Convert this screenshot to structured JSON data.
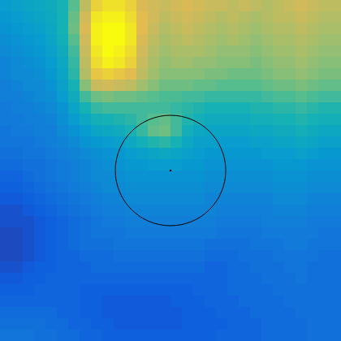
{
  "chart_data": {
    "type": "heatmap",
    "color_range": [
      0,
      100
    ],
    "tick_labels": false,
    "cells": [
      [
        38,
        40,
        42,
        44,
        46,
        50,
        62,
        80,
        92,
        95,
        95,
        92,
        86,
        84,
        82,
        84,
        86,
        84,
        82,
        82,
        80,
        82,
        80,
        78,
        80,
        82,
        84,
        82,
        80,
        80
      ],
      [
        36,
        38,
        40,
        42,
        45,
        50,
        65,
        84,
        96,
        98,
        98,
        94,
        88,
        84,
        80,
        82,
        84,
        82,
        80,
        78,
        80,
        78,
        76,
        78,
        80,
        80,
        82,
        80,
        78,
        78
      ],
      [
        34,
        36,
        38,
        40,
        44,
        50,
        66,
        86,
        98,
        100,
        100,
        96,
        88,
        82,
        78,
        80,
        82,
        80,
        78,
        76,
        78,
        76,
        74,
        76,
        78,
        78,
        80,
        78,
        76,
        76
      ],
      [
        32,
        34,
        36,
        38,
        42,
        48,
        62,
        84,
        98,
        100,
        100,
        96,
        86,
        80,
        76,
        78,
        80,
        78,
        76,
        74,
        76,
        74,
        72,
        74,
        76,
        76,
        78,
        76,
        74,
        74
      ],
      [
        30,
        32,
        34,
        36,
        40,
        46,
        58,
        82,
        96,
        100,
        98,
        94,
        84,
        78,
        74,
        76,
        76,
        76,
        74,
        72,
        72,
        72,
        70,
        72,
        74,
        74,
        76,
        74,
        72,
        72
      ],
      [
        28,
        30,
        32,
        34,
        38,
        44,
        56,
        80,
        94,
        98,
        96,
        92,
        82,
        76,
        72,
        74,
        74,
        72,
        72,
        70,
        70,
        70,
        68,
        70,
        72,
        72,
        74,
        72,
        70,
        70
      ],
      [
        28,
        30,
        30,
        32,
        36,
        42,
        54,
        78,
        90,
        92,
        90,
        88,
        80,
        74,
        70,
        70,
        70,
        70,
        68,
        68,
        66,
        66,
        66,
        68,
        70,
        70,
        72,
        70,
        68,
        68
      ],
      [
        26,
        28,
        30,
        30,
        34,
        40,
        50,
        70,
        82,
        84,
        82,
        80,
        74,
        70,
        66,
        66,
        66,
        64,
        64,
        62,
        62,
        62,
        62,
        64,
        66,
        66,
        68,
        66,
        64,
        64
      ],
      [
        26,
        26,
        28,
        30,
        32,
        38,
        46,
        58,
        66,
        68,
        66,
        66,
        64,
        62,
        60,
        60,
        58,
        58,
        56,
        56,
        56,
        56,
        56,
        58,
        60,
        60,
        62,
        60,
        58,
        58
      ],
      [
        24,
        26,
        26,
        28,
        30,
        34,
        42,
        50,
        56,
        58,
        58,
        58,
        58,
        58,
        58,
        56,
        54,
        52,
        50,
        50,
        50,
        50,
        52,
        52,
        54,
        54,
        56,
        54,
        52,
        52
      ],
      [
        24,
        24,
        26,
        26,
        28,
        32,
        38,
        44,
        48,
        50,
        52,
        54,
        58,
        62,
        64,
        58,
        52,
        48,
        46,
        46,
        46,
        46,
        48,
        48,
        50,
        50,
        52,
        50,
        48,
        48
      ],
      [
        22,
        24,
        24,
        26,
        26,
        30,
        34,
        38,
        42,
        44,
        46,
        50,
        56,
        64,
        66,
        58,
        48,
        44,
        42,
        42,
        42,
        42,
        44,
        44,
        46,
        46,
        48,
        46,
        44,
        44
      ],
      [
        22,
        22,
        22,
        24,
        26,
        28,
        30,
        34,
        36,
        38,
        40,
        44,
        48,
        52,
        54,
        50,
        44,
        40,
        40,
        38,
        38,
        38,
        40,
        40,
        42,
        42,
        44,
        42,
        40,
        40
      ],
      [
        20,
        20,
        22,
        22,
        24,
        26,
        28,
        30,
        32,
        34,
        36,
        38,
        40,
        42,
        44,
        42,
        40,
        38,
        36,
        36,
        36,
        36,
        36,
        38,
        38,
        38,
        40,
        38,
        36,
        36
      ],
      [
        18,
        18,
        20,
        20,
        22,
        24,
        26,
        28,
        30,
        32,
        34,
        36,
        36,
        38,
        38,
        38,
        36,
        36,
        34,
        34,
        34,
        34,
        34,
        34,
        36,
        36,
        36,
        34,
        34,
        34
      ],
      [
        16,
        16,
        18,
        20,
        22,
        24,
        26,
        28,
        30,
        30,
        32,
        34,
        34,
        34,
        34,
        34,
        34,
        34,
        32,
        32,
        32,
        32,
        32,
        32,
        34,
        34,
        34,
        32,
        32,
        32
      ],
      [
        14,
        14,
        16,
        18,
        20,
        22,
        24,
        26,
        28,
        30,
        30,
        32,
        32,
        32,
        32,
        32,
        32,
        32,
        30,
        30,
        30,
        30,
        30,
        30,
        32,
        32,
        32,
        30,
        30,
        30
      ],
      [
        12,
        12,
        14,
        16,
        18,
        20,
        22,
        24,
        26,
        28,
        28,
        30,
        30,
        30,
        30,
        30,
        30,
        30,
        28,
        28,
        28,
        28,
        28,
        28,
        30,
        30,
        30,
        28,
        28,
        28
      ],
      [
        10,
        10,
        12,
        14,
        16,
        18,
        20,
        22,
        24,
        26,
        26,
        28,
        28,
        28,
        28,
        28,
        28,
        28,
        28,
        26,
        26,
        26,
        26,
        26,
        28,
        28,
        28,
        26,
        26,
        26
      ],
      [
        10,
        10,
        10,
        12,
        14,
        16,
        18,
        20,
        22,
        24,
        24,
        26,
        26,
        26,
        26,
        26,
        26,
        26,
        26,
        24,
        24,
        24,
        24,
        26,
        26,
        26,
        26,
        24,
        24,
        24
      ],
      [
        8,
        8,
        10,
        12,
        14,
        16,
        18,
        20,
        22,
        22,
        22,
        24,
        24,
        24,
        24,
        24,
        24,
        24,
        24,
        22,
        22,
        22,
        22,
        24,
        24,
        24,
        24,
        24,
        22,
        22
      ],
      [
        8,
        8,
        10,
        12,
        14,
        16,
        18,
        20,
        20,
        20,
        22,
        22,
        22,
        22,
        22,
        22,
        22,
        22,
        20,
        20,
        20,
        20,
        22,
        22,
        22,
        24,
        24,
        22,
        22,
        22
      ],
      [
        8,
        8,
        10,
        12,
        14,
        16,
        16,
        18,
        18,
        18,
        20,
        20,
        20,
        20,
        20,
        20,
        20,
        20,
        18,
        18,
        18,
        20,
        20,
        20,
        22,
        22,
        22,
        22,
        20,
        20
      ],
      [
        10,
        10,
        12,
        14,
        14,
        16,
        16,
        16,
        18,
        18,
        18,
        18,
        18,
        18,
        18,
        18,
        18,
        18,
        16,
        16,
        18,
        18,
        20,
        20,
        20,
        22,
        22,
        20,
        20,
        20
      ],
      [
        12,
        12,
        14,
        14,
        16,
        16,
        16,
        16,
        16,
        16,
        16,
        16,
        16,
        16,
        16,
        16,
        16,
        16,
        16,
        16,
        18,
        18,
        18,
        20,
        20,
        20,
        22,
        20,
        20,
        20
      ],
      [
        14,
        14,
        14,
        16,
        16,
        16,
        16,
        14,
        14,
        14,
        14,
        14,
        14,
        14,
        14,
        14,
        14,
        16,
        16,
        16,
        18,
        18,
        18,
        18,
        20,
        20,
        20,
        20,
        20,
        20
      ],
      [
        16,
        16,
        16,
        16,
        16,
        16,
        16,
        14,
        14,
        12,
        12,
        12,
        12,
        12,
        12,
        14,
        14,
        14,
        16,
        16,
        16,
        18,
        18,
        18,
        18,
        20,
        20,
        20,
        20,
        20
      ],
      [
        18,
        18,
        18,
        18,
        18,
        16,
        16,
        14,
        14,
        12,
        12,
        12,
        12,
        12,
        12,
        12,
        14,
        14,
        14,
        16,
        16,
        16,
        18,
        18,
        18,
        18,
        20,
        20,
        20,
        20
      ],
      [
        20,
        20,
        20,
        20,
        18,
        18,
        16,
        16,
        14,
        14,
        12,
        12,
        12,
        12,
        12,
        12,
        14,
        14,
        14,
        14,
        16,
        16,
        16,
        18,
        18,
        18,
        18,
        20,
        20,
        20
      ],
      [
        22,
        22,
        22,
        20,
        20,
        18,
        18,
        16,
        16,
        14,
        14,
        14,
        14,
        14,
        14,
        14,
        14,
        14,
        14,
        16,
        16,
        16,
        16,
        18,
        18,
        18,
        18,
        20,
        20,
        20
      ]
    ]
  }
}
